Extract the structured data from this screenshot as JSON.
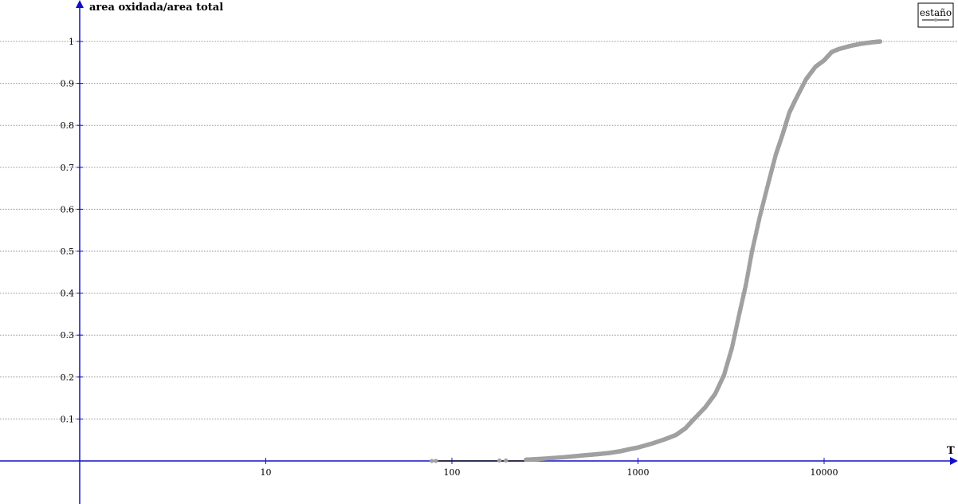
{
  "chart_data": {
    "type": "scatter",
    "xlabel": "T",
    "ylabel": "area oxidada/area total",
    "x_scale": "log",
    "xlim": [
      1,
      50000
    ],
    "ylim": [
      0,
      1.05
    ],
    "x_ticks": [
      10,
      100,
      1000,
      10000
    ],
    "x_tick_labels": [
      "10",
      "100",
      "1000",
      "10000"
    ],
    "y_ticks": [
      0.1,
      0.2,
      0.3,
      0.4,
      0.5,
      0.6,
      0.7,
      0.8,
      0.9,
      1
    ],
    "y_tick_labels": [
      "0.1",
      "0.2",
      "0.3",
      "0.4",
      "0.5",
      "0.6",
      "0.7",
      "0.8",
      "0.9",
      "1"
    ],
    "grid": true,
    "legend": {
      "placement": "top-right"
    },
    "colors": {
      "axis": "#1010c8",
      "series": "#a0a0a0",
      "grid": "#9a9a9a"
    },
    "series": [
      {
        "name": "estaño",
        "points": [
          [
            78,
            0.0
          ],
          [
            82,
            0.0
          ],
          [
            180,
            0.001
          ],
          [
            195,
            0.001
          ],
          [
            250,
            0.003
          ],
          [
            300,
            0.005
          ],
          [
            400,
            0.009
          ],
          [
            500,
            0.013
          ],
          [
            600,
            0.016
          ],
          [
            700,
            0.019
          ],
          [
            800,
            0.023
          ],
          [
            900,
            0.028
          ],
          [
            1000,
            0.032
          ],
          [
            1200,
            0.042
          ],
          [
            1400,
            0.052
          ],
          [
            1600,
            0.062
          ],
          [
            1800,
            0.078
          ],
          [
            2000,
            0.1
          ],
          [
            2300,
            0.128
          ],
          [
            2600,
            0.16
          ],
          [
            2900,
            0.205
          ],
          [
            3200,
            0.27
          ],
          [
            3500,
            0.35
          ],
          [
            3800,
            0.42
          ],
          [
            4100,
            0.5
          ],
          [
            4500,
            0.58
          ],
          [
            5000,
            0.66
          ],
          [
            5500,
            0.73
          ],
          [
            6000,
            0.78
          ],
          [
            6500,
            0.83
          ],
          [
            7000,
            0.86
          ],
          [
            8000,
            0.91
          ],
          [
            9000,
            0.94
          ],
          [
            10000,
            0.955
          ],
          [
            11000,
            0.975
          ],
          [
            12000,
            0.982
          ],
          [
            14000,
            0.99
          ],
          [
            16000,
            0.995
          ],
          [
            18000,
            0.998
          ],
          [
            20000,
            1.0
          ]
        ]
      }
    ]
  }
}
